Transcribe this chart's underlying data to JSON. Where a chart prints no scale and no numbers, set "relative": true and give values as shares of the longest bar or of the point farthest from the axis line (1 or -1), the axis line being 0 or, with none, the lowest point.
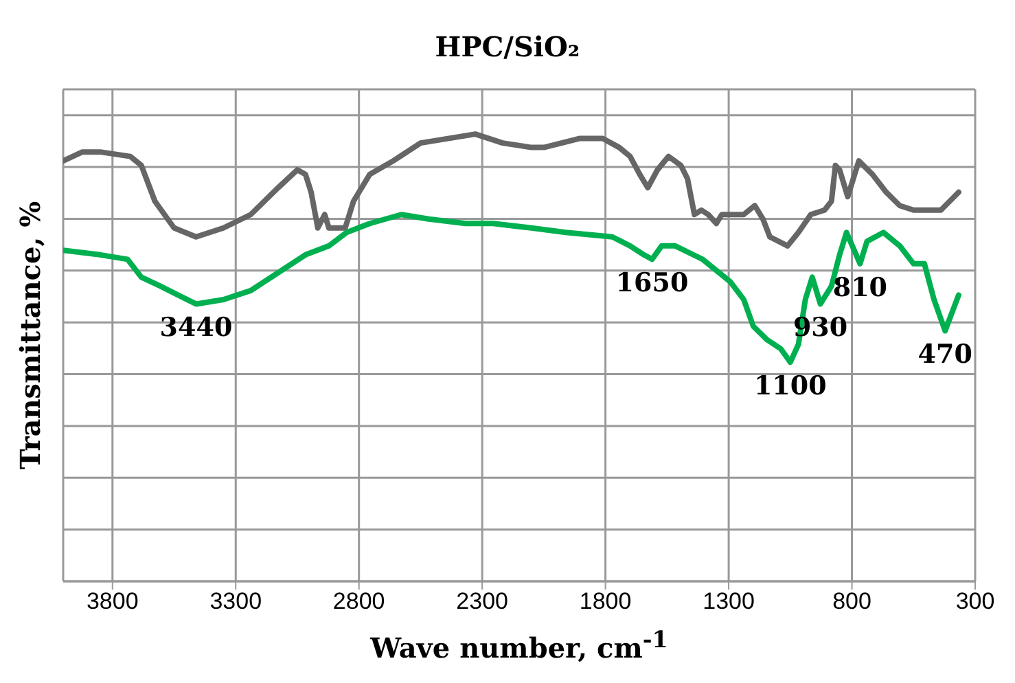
{
  "chart_data": {
    "type": "line",
    "title": "HPC/SiO₂",
    "xlabel": "Wave number, cm$^{-1}$",
    "ylabel": "Transmittance, %",
    "relative": true,
    "xlim": [
      4000,
      300
    ],
    "xticks": [
      3800,
      3300,
      2800,
      2300,
      1800,
      1300,
      800,
      300
    ],
    "grid": true,
    "legend": false,
    "marker": "none",
    "line_style": "solid",
    "series": [
      {
        "color": "#666666",
        "x": [
          4000,
          3922,
          3850,
          3728,
          3683,
          3628,
          3550,
          3461,
          3350,
          3239,
          3128,
          3050,
          3017,
          2994,
          2967,
          2939,
          2922,
          2856,
          2822,
          2756,
          2661,
          2550,
          2439,
          2328,
          2217,
          2100,
          2050,
          1906,
          1811,
          1744,
          1700,
          1661,
          1628,
          1589,
          1544,
          1494,
          1467,
          1439,
          1411,
          1383,
          1350,
          1328,
          1272,
          1239,
          1194,
          1161,
          1133,
          1061,
          1017,
          967,
          911,
          883,
          867,
          850,
          817,
          772,
          717,
          661,
          606,
          550,
          478,
          439,
          367
        ],
        "values": [
          0.94,
          0.96,
          0.96,
          0.95,
          0.93,
          0.85,
          0.79,
          0.77,
          0.79,
          0.82,
          0.88,
          0.92,
          0.91,
          0.87,
          0.79,
          0.82,
          0.79,
          0.79,
          0.85,
          0.91,
          0.94,
          0.98,
          0.99,
          1.0,
          0.98,
          0.97,
          0.97,
          0.99,
          0.99,
          0.97,
          0.95,
          0.91,
          0.88,
          0.92,
          0.95,
          0.93,
          0.9,
          0.82,
          0.83,
          0.82,
          0.8,
          0.82,
          0.82,
          0.82,
          0.84,
          0.81,
          0.77,
          0.75,
          0.78,
          0.82,
          0.83,
          0.85,
          0.93,
          0.92,
          0.86,
          0.94,
          0.91,
          0.87,
          0.84,
          0.83,
          0.83,
          0.83,
          0.87
        ]
      },
      {
        "color": "#00b050",
        "x": [
          4000,
          3850,
          3739,
          3683,
          3606,
          3461,
          3350,
          3239,
          3128,
          3017,
          2922,
          2850,
          2756,
          2628,
          2517,
          2367,
          2256,
          2100,
          1961,
          1772,
          1700,
          1644,
          1611,
          1572,
          1517,
          1406,
          1294,
          1239,
          1200,
          1144,
          1089,
          1050,
          1017,
          989,
          961,
          928,
          883,
          850,
          822,
          767,
          739,
          672,
          606,
          550,
          506,
          467,
          422,
          367
        ],
        "values": [
          0.74,
          0.73,
          0.72,
          0.68,
          0.66,
          0.62,
          0.63,
          0.65,
          0.69,
          0.73,
          0.75,
          0.78,
          0.8,
          0.82,
          0.81,
          0.8,
          0.8,
          0.79,
          0.78,
          0.77,
          0.75,
          0.73,
          0.72,
          0.75,
          0.75,
          0.72,
          0.67,
          0.63,
          0.57,
          0.54,
          0.52,
          0.49,
          0.53,
          0.63,
          0.68,
          0.62,
          0.66,
          0.73,
          0.78,
          0.71,
          0.76,
          0.78,
          0.75,
          0.71,
          0.71,
          0.63,
          0.56,
          0.64
        ]
      }
    ],
    "annotations": [
      {
        "text": "3440",
        "x": 3461,
        "y": 0.62
      },
      {
        "text": "1650",
        "x": 1611,
        "y": 0.72
      },
      {
        "text": "1100",
        "x": 1050,
        "y": 0.49
      },
      {
        "text": "930",
        "x": 928,
        "y": 0.62
      },
      {
        "text": "810",
        "x": 767,
        "y": 0.71
      },
      {
        "text": "470",
        "x": 422,
        "y": 0.56
      }
    ]
  }
}
